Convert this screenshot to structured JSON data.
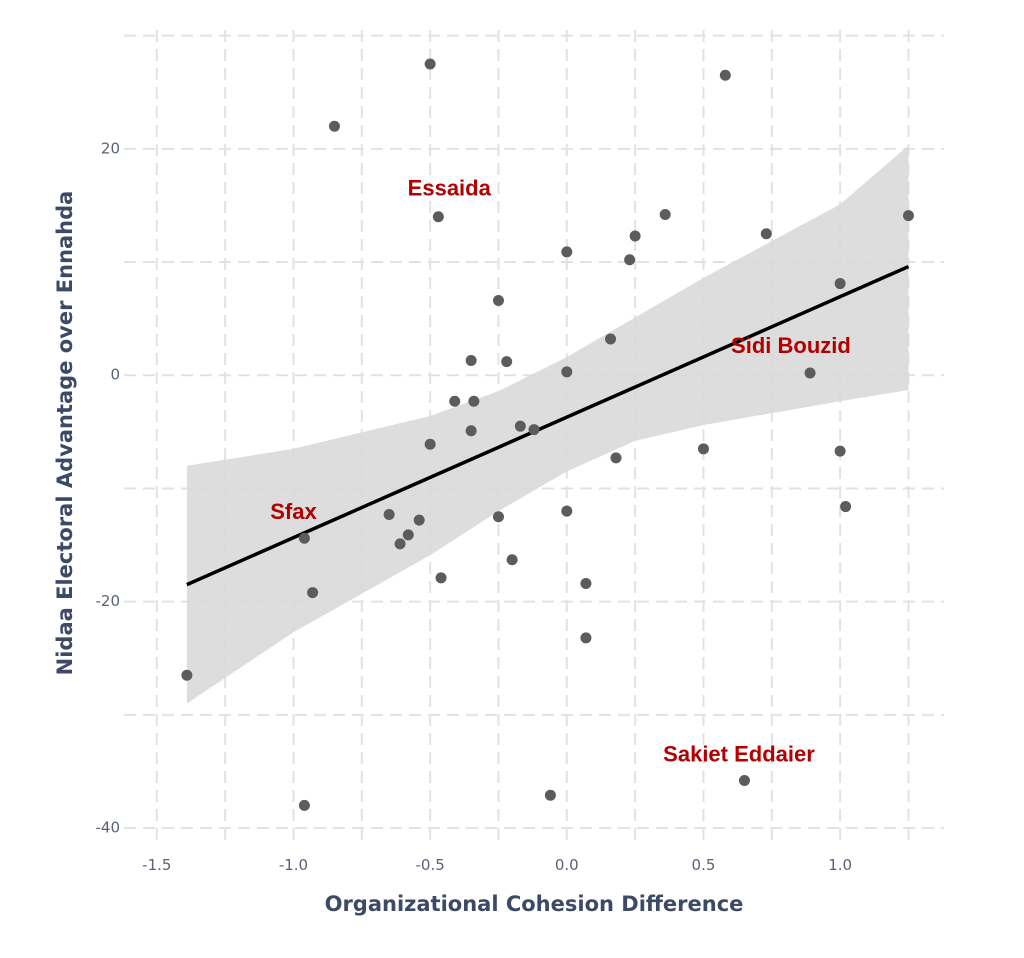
{
  "chart_data": {
    "type": "scatter",
    "xlabel": "Organizational Cohesion Difference",
    "ylabel": "Nidaa Electoral Advantage over Ennahda",
    "xlim": [
      -1.62,
      1.38
    ],
    "ylim": [
      -41.5,
      30.5
    ],
    "x_ticks": [
      -1.5,
      -1.0,
      -0.5,
      0.0,
      0.5,
      1.0
    ],
    "x_tick_labels": [
      "-1.5",
      "-1.0",
      "-0.5",
      "0.0",
      "0.5",
      "1.0"
    ],
    "y_ticks": [
      -40,
      -20,
      0,
      20
    ],
    "y_tick_labels": [
      "-40",
      "-20",
      "0",
      "20"
    ],
    "grid": true,
    "grid_style": "dashed",
    "point_color": "#5c5c5c",
    "fit_line_color": "#000000",
    "band_color": "#d9d9d9",
    "annotation_color": "#b20000",
    "points": [
      {
        "x": -0.5,
        "y": 27.5
      },
      {
        "x": 0.58,
        "y": 26.5
      },
      {
        "x": -0.85,
        "y": 22.0
      },
      {
        "x": -0.47,
        "y": 14.0
      },
      {
        "x": 0.36,
        "y": 14.2
      },
      {
        "x": 1.25,
        "y": 14.1
      },
      {
        "x": 0.25,
        "y": 12.3
      },
      {
        "x": 0.73,
        "y": 12.5
      },
      {
        "x": 0.0,
        "y": 10.9
      },
      {
        "x": 0.23,
        "y": 10.2
      },
      {
        "x": 1.0,
        "y": 8.1
      },
      {
        "x": -0.25,
        "y": 6.6
      },
      {
        "x": 0.16,
        "y": 3.2
      },
      {
        "x": -0.35,
        "y": 1.3
      },
      {
        "x": -0.22,
        "y": 1.2
      },
      {
        "x": 0.0,
        "y": 0.3
      },
      {
        "x": 0.89,
        "y": 0.2
      },
      {
        "x": -0.41,
        "y": -2.3
      },
      {
        "x": -0.34,
        "y": -2.3
      },
      {
        "x": -0.17,
        "y": -4.5
      },
      {
        "x": -0.12,
        "y": -4.8
      },
      {
        "x": -0.35,
        "y": -4.9
      },
      {
        "x": -0.5,
        "y": -6.1
      },
      {
        "x": 0.5,
        "y": -6.5
      },
      {
        "x": 1.0,
        "y": -6.7
      },
      {
        "x": 0.18,
        "y": -7.3
      },
      {
        "x": 1.02,
        "y": -11.6
      },
      {
        "x": 0.0,
        "y": -12.0
      },
      {
        "x": -0.65,
        "y": -12.3
      },
      {
        "x": -0.25,
        "y": -12.5
      },
      {
        "x": -0.54,
        "y": -12.8
      },
      {
        "x": -0.58,
        "y": -14.1
      },
      {
        "x": -0.96,
        "y": -14.4
      },
      {
        "x": -0.61,
        "y": -14.9
      },
      {
        "x": -0.2,
        "y": -16.3
      },
      {
        "x": -0.46,
        "y": -17.9
      },
      {
        "x": 0.07,
        "y": -18.4
      },
      {
        "x": -0.93,
        "y": -19.2
      },
      {
        "x": 0.07,
        "y": -23.2
      },
      {
        "x": -1.39,
        "y": -26.5
      },
      {
        "x": 0.65,
        "y": -35.8
      },
      {
        "x": -0.06,
        "y": -37.1
      },
      {
        "x": -0.96,
        "y": -38.0
      }
    ],
    "fit_line": {
      "x": [
        -1.39,
        1.25
      ],
      "y": [
        -18.5,
        9.6
      ]
    },
    "confidence_band": {
      "x": [
        -1.39,
        -1.0,
        -0.5,
        -0.25,
        0.0,
        0.25,
        0.5,
        1.0,
        1.25
      ],
      "lower": [
        -29.0,
        -22.7,
        -15.9,
        -12.0,
        -8.5,
        -5.8,
        -4.4,
        -2.3,
        -1.3
      ],
      "upper": [
        -8.0,
        -6.5,
        -3.6,
        -1.4,
        1.6,
        5.1,
        8.6,
        15.1,
        20.3
      ]
    },
    "annotations": [
      {
        "text": "Essaida",
        "x": -0.43,
        "y": 16.4
      },
      {
        "text": "Sidi Bouzid",
        "x": 0.82,
        "y": 2.5
      },
      {
        "text": "Sfax",
        "x": -1.0,
        "y": -12.2
      },
      {
        "text": "Sakiet Eddaier",
        "x": 0.63,
        "y": -33.6
      }
    ]
  }
}
